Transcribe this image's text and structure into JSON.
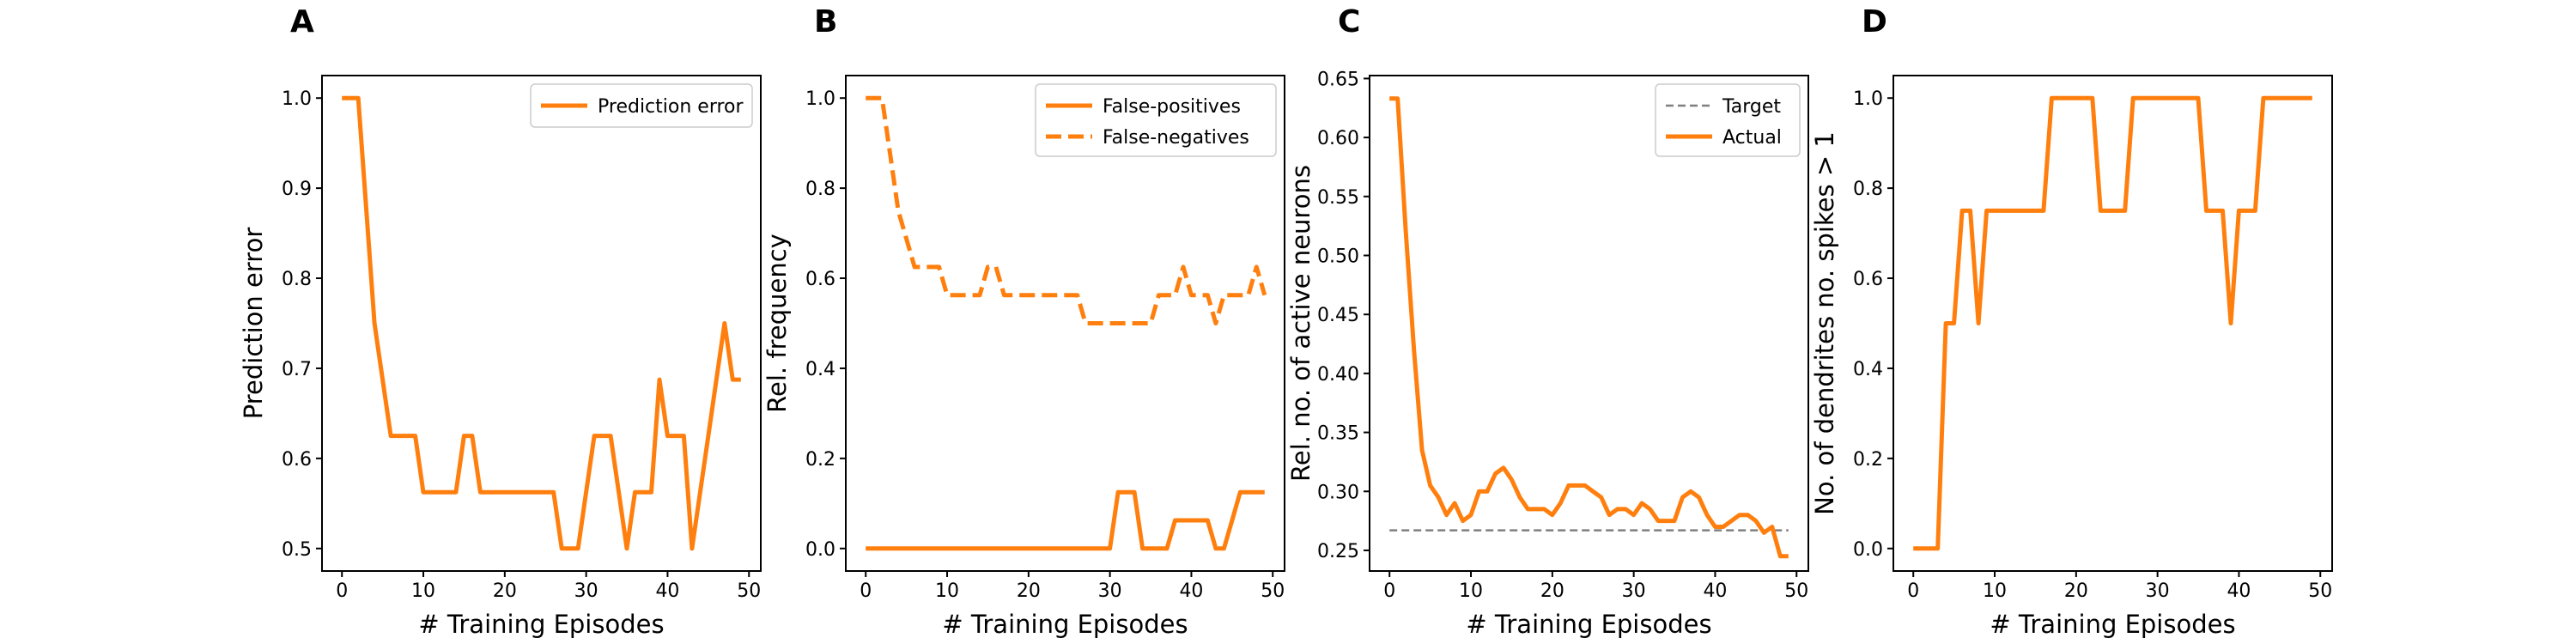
{
  "figure": {
    "panels": [
      "A",
      "B",
      "C",
      "D"
    ]
  },
  "colors": {
    "series": "#ff7f0e",
    "target": "#7f7f7f"
  },
  "chart_data": [
    {
      "type": "line",
      "panel": "A",
      "xlabel": "# Training Episodes",
      "ylabel": "Prediction error",
      "xlim": [
        -2.45,
        51.45
      ],
      "ylim": [
        0.475,
        1.025
      ],
      "xticks": [
        0,
        10,
        20,
        30,
        40,
        50
      ],
      "yticks": [
        0.5,
        0.6,
        0.7,
        0.8,
        0.9,
        1.0
      ],
      "ytick_labels": [
        "0.5",
        "0.6",
        "0.7",
        "0.8",
        "0.9",
        "1.0"
      ],
      "legend_position": "top-right",
      "x": [
        0,
        1,
        2,
        3,
        4,
        5,
        6,
        7,
        8,
        9,
        10,
        11,
        12,
        13,
        14,
        15,
        16,
        17,
        18,
        19,
        20,
        21,
        22,
        23,
        24,
        25,
        26,
        27,
        28,
        29,
        30,
        31,
        32,
        33,
        34,
        35,
        36,
        37,
        38,
        39,
        40,
        41,
        42,
        43,
        44,
        45,
        46,
        47,
        48,
        49
      ],
      "series": [
        {
          "name": "Prediction error",
          "style": "solid",
          "values": [
            1.0,
            1.0,
            1.0,
            0.875,
            0.75,
            0.6875,
            0.625,
            0.625,
            0.625,
            0.625,
            0.5625,
            0.5625,
            0.5625,
            0.5625,
            0.5625,
            0.625,
            0.625,
            0.5625,
            0.5625,
            0.5625,
            0.5625,
            0.5625,
            0.5625,
            0.5625,
            0.5625,
            0.5625,
            0.5625,
            0.5,
            0.5,
            0.5,
            0.5625,
            0.625,
            0.625,
            0.625,
            0.5625,
            0.5,
            0.5625,
            0.5625,
            0.5625,
            0.6875,
            0.625,
            0.625,
            0.625,
            0.5,
            0.5625,
            0.625,
            0.6875,
            0.75,
            0.6875,
            0.6875
          ]
        }
      ]
    },
    {
      "type": "line",
      "panel": "B",
      "xlabel": "# Training Episodes",
      "ylabel": "Rel. frequency",
      "xlim": [
        -2.45,
        51.45
      ],
      "ylim": [
        -0.05,
        1.05
      ],
      "xticks": [
        0,
        10,
        20,
        30,
        40,
        50
      ],
      "yticks": [
        0.0,
        0.2,
        0.4,
        0.6,
        0.8,
        1.0
      ],
      "ytick_labels": [
        "0.0",
        "0.2",
        "0.4",
        "0.6",
        "0.8",
        "1.0"
      ],
      "legend_position": "top-right",
      "x": [
        0,
        1,
        2,
        3,
        4,
        5,
        6,
        7,
        8,
        9,
        10,
        11,
        12,
        13,
        14,
        15,
        16,
        17,
        18,
        19,
        20,
        21,
        22,
        23,
        24,
        25,
        26,
        27,
        28,
        29,
        30,
        31,
        32,
        33,
        34,
        35,
        36,
        37,
        38,
        39,
        40,
        41,
        42,
        43,
        44,
        45,
        46,
        47,
        48,
        49
      ],
      "series": [
        {
          "name": "False-positives",
          "style": "solid",
          "values": [
            0,
            0,
            0,
            0,
            0,
            0,
            0,
            0,
            0,
            0,
            0,
            0,
            0,
            0,
            0,
            0,
            0,
            0,
            0,
            0,
            0,
            0,
            0,
            0,
            0,
            0,
            0,
            0,
            0,
            0,
            0,
            0.125,
            0.125,
            0.125,
            0,
            0,
            0,
            0,
            0.0625,
            0.0625,
            0.0625,
            0.0625,
            0.0625,
            0,
            0,
            0.0625,
            0.125,
            0.125,
            0.125,
            0.125
          ]
        },
        {
          "name": "False-negatives",
          "style": "dashed",
          "values": [
            1.0,
            1.0,
            1.0,
            0.875,
            0.75,
            0.6875,
            0.625,
            0.625,
            0.625,
            0.625,
            0.5625,
            0.5625,
            0.5625,
            0.5625,
            0.5625,
            0.625,
            0.625,
            0.5625,
            0.5625,
            0.5625,
            0.5625,
            0.5625,
            0.5625,
            0.5625,
            0.5625,
            0.5625,
            0.5625,
            0.5,
            0.5,
            0.5,
            0.5,
            0.5,
            0.5,
            0.5,
            0.5,
            0.5,
            0.5625,
            0.5625,
            0.5625,
            0.625,
            0.5625,
            0.5625,
            0.5625,
            0.5,
            0.5625,
            0.5625,
            0.5625,
            0.5625,
            0.625,
            0.5625
          ]
        }
      ]
    },
    {
      "type": "line",
      "panel": "C",
      "xlabel": "# Training Episodes",
      "ylabel": "Rel. no. of active neurons",
      "xlim": [
        -2.45,
        51.45
      ],
      "ylim": [
        0.2325,
        0.6525
      ],
      "xticks": [
        0,
        10,
        20,
        30,
        40,
        50
      ],
      "yticks": [
        0.25,
        0.3,
        0.35,
        0.4,
        0.45,
        0.5,
        0.55,
        0.6,
        0.65
      ],
      "ytick_labels": [
        "0.25",
        "0.30",
        "0.35",
        "0.40",
        "0.45",
        "0.50",
        "0.55",
        "0.60",
        "0.65"
      ],
      "legend_position": "top-right",
      "x": [
        0,
        1,
        2,
        3,
        4,
        5,
        6,
        7,
        8,
        9,
        10,
        11,
        12,
        13,
        14,
        15,
        16,
        17,
        18,
        19,
        20,
        21,
        22,
        23,
        24,
        25,
        26,
        27,
        28,
        29,
        30,
        31,
        32,
        33,
        34,
        35,
        36,
        37,
        38,
        39,
        40,
        41,
        42,
        43,
        44,
        45,
        46,
        47,
        48,
        49
      ],
      "series": [
        {
          "name": "Target",
          "style": "dashed",
          "values": [
            0.267,
            0.267,
            0.267,
            0.267,
            0.267,
            0.267,
            0.267,
            0.267,
            0.267,
            0.267,
            0.267,
            0.267,
            0.267,
            0.267,
            0.267,
            0.267,
            0.267,
            0.267,
            0.267,
            0.267,
            0.267,
            0.267,
            0.267,
            0.267,
            0.267,
            0.267,
            0.267,
            0.267,
            0.267,
            0.267,
            0.267,
            0.267,
            0.267,
            0.267,
            0.267,
            0.267,
            0.267,
            0.267,
            0.267,
            0.267,
            0.267,
            0.267,
            0.267,
            0.267,
            0.267,
            0.267,
            0.267,
            0.267,
            0.267,
            0.267
          ]
        },
        {
          "name": "Actual",
          "style": "solid",
          "values": [
            0.633,
            0.633,
            0.52,
            0.42,
            0.335,
            0.305,
            0.295,
            0.28,
            0.29,
            0.275,
            0.28,
            0.3,
            0.3,
            0.315,
            0.32,
            0.31,
            0.295,
            0.285,
            0.285,
            0.285,
            0.28,
            0.29,
            0.305,
            0.305,
            0.305,
            0.3,
            0.295,
            0.28,
            0.285,
            0.285,
            0.28,
            0.29,
            0.285,
            0.275,
            0.275,
            0.275,
            0.295,
            0.3,
            0.295,
            0.28,
            0.27,
            0.27,
            0.275,
            0.28,
            0.28,
            0.275,
            0.265,
            0.27,
            0.245,
            0.245
          ]
        }
      ]
    },
    {
      "type": "line",
      "panel": "D",
      "xlabel": "# Training Episodes",
      "ylabel": "No. of dendrites no. spikes > 1",
      "xlim": [
        -2.45,
        51.45
      ],
      "ylim": [
        -0.05,
        1.05
      ],
      "xticks": [
        0,
        10,
        20,
        30,
        40,
        50
      ],
      "yticks": [
        0.0,
        0.2,
        0.4,
        0.6,
        0.8,
        1.0
      ],
      "ytick_labels": [
        "0.0",
        "0.2",
        "0.4",
        "0.6",
        "0.8",
        "1.0"
      ],
      "x": [
        0,
        1,
        2,
        3,
        4,
        5,
        6,
        7,
        8,
        9,
        10,
        11,
        12,
        13,
        14,
        15,
        16,
        17,
        18,
        19,
        20,
        21,
        22,
        23,
        24,
        25,
        26,
        27,
        28,
        29,
        30,
        31,
        32,
        33,
        34,
        35,
        36,
        37,
        38,
        39,
        40,
        41,
        42,
        43,
        44,
        45,
        46,
        47,
        48,
        49
      ],
      "series": [
        {
          "style": "solid",
          "values": [
            0,
            0,
            0,
            0,
            0.5,
            0.5,
            0.75,
            0.75,
            0.5,
            0.75,
            0.75,
            0.75,
            0.75,
            0.75,
            0.75,
            0.75,
            0.75,
            1.0,
            1.0,
            1.0,
            1.0,
            1.0,
            1.0,
            0.75,
            0.75,
            0.75,
            0.75,
            1.0,
            1.0,
            1.0,
            1.0,
            1.0,
            1.0,
            1.0,
            1.0,
            1.0,
            0.75,
            0.75,
            0.75,
            0.5,
            0.75,
            0.75,
            0.75,
            1.0,
            1.0,
            1.0,
            1.0,
            1.0,
            1.0,
            1.0
          ]
        }
      ]
    }
  ]
}
